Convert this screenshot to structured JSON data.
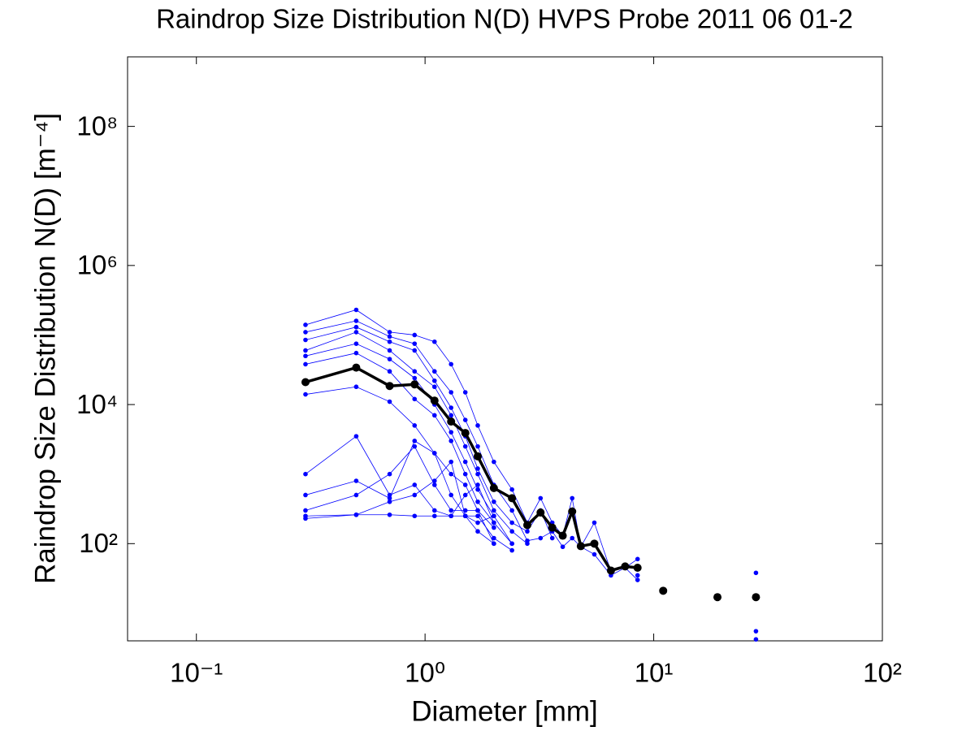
{
  "chart_data": {
    "type": "line",
    "title": "Raindrop Size Distribution N(D) HVPS Probe 2011 06 01-2",
    "x_label": "Diameter [mm]",
    "y_label": "Raindrop Size Distribution N(D) [m⁻⁴]",
    "x": [
      0.3,
      0.5,
      0.7,
      0.9,
      1.1,
      1.3,
      1.5,
      1.7,
      2.0,
      2.4,
      2.8,
      3.2,
      3.6,
      4.0,
      4.4,
      4.8,
      5.5,
      6.5,
      7.5,
      8.5,
      11,
      19,
      28
    ],
    "xscale": "log",
    "yscale": "log",
    "xlim": [
      0.05,
      100
    ],
    "ylim": [
      4,
      1000000000
    ],
    "xticks": [
      {
        "value": 0.1,
        "label": "10⁻¹"
      },
      {
        "value": 1,
        "label": "10⁰"
      },
      {
        "value": 10,
        "label": "10¹"
      },
      {
        "value": 100,
        "label": "10²"
      }
    ],
    "yticks": [
      {
        "value": 100,
        "label": "10²"
      },
      {
        "value": 10000,
        "label": "10⁴"
      },
      {
        "value": 1000000,
        "label": "10⁶"
      },
      {
        "value": 100000000,
        "label": "10⁸"
      }
    ],
    "grid": false,
    "series": [
      {
        "color": "#0000ff",
        "line": true,
        "values": [
          140000,
          230000,
          110000,
          100000,
          80000,
          38000,
          15000,
          5000,
          1500,
          600,
          200,
          450,
          200,
          130,
          450,
          90,
          200,
          40,
          45,
          60,
          null,
          null,
          38
        ]
      },
      {
        "color": "#0000ff",
        "line": true,
        "values": [
          110000,
          160000,
          95000,
          75000,
          30000,
          15000,
          6000,
          2500,
          700,
          300,
          110,
          120,
          150,
          90,
          120,
          90,
          70,
          35,
          45,
          30,
          null,
          null,
          5.5
        ]
      },
      {
        "color": "#0000ff",
        "line": true,
        "values": [
          85000,
          130000,
          80000,
          60000,
          22000,
          9000,
          3500,
          1200,
          400,
          200,
          150,
          300,
          120,
          null,
          null,
          null,
          null,
          null,
          null,
          35,
          null,
          null,
          4.2
        ]
      },
      {
        "color": "#0000ff",
        "line": true,
        "values": [
          60000,
          110000,
          60000,
          30000,
          18000,
          7000,
          2500,
          1000,
          300,
          150,
          100,
          null,
          null,
          null,
          null,
          null,
          null,
          null,
          null,
          null,
          null,
          null,
          null
        ]
      },
      {
        "color": "#0000ff",
        "line": true,
        "values": [
          50000,
          75000,
          45000,
          24000,
          10000,
          4000,
          1500,
          600,
          250,
          null,
          null,
          null,
          null,
          null,
          null,
          null,
          null,
          null,
          null,
          null,
          null,
          null,
          null
        ]
      },
      {
        "color": "#0000ff",
        "line": true,
        "values": [
          38000,
          55000,
          30000,
          12000,
          7000,
          3000,
          1000,
          400,
          200,
          null,
          null,
          null,
          null,
          null,
          null,
          null,
          null,
          null,
          null,
          null,
          null,
          null,
          null
        ]
      },
      {
        "color": "#0000ff",
        "line": true,
        "values": [
          14000,
          18000,
          11000,
          5000,
          2000,
          1000,
          700,
          300,
          170,
          null,
          null,
          null,
          null,
          null,
          null,
          null,
          null,
          null,
          null,
          null,
          null,
          null,
          null
        ]
      },
      {
        "color": "#0000ff",
        "line": true,
        "values": [
          1000,
          3500,
          500,
          700,
          300,
          250,
          250,
          250,
          120,
          80,
          null,
          null,
          null,
          null,
          null,
          null,
          null,
          null,
          null,
          null,
          null,
          null,
          null
        ]
      },
      {
        "color": "#0000ff",
        "line": true,
        "values": [
          500,
          800,
          450,
          3000,
          2000,
          500,
          250,
          200,
          250,
          100,
          null,
          null,
          null,
          null,
          null,
          null,
          null,
          null,
          null,
          null,
          null,
          null,
          null
        ]
      },
      {
        "color": "#0000ff",
        "line": true,
        "values": [
          300,
          500,
          1000,
          2500,
          700,
          300,
          300,
          300,
          100,
          null,
          null,
          null,
          null,
          null,
          null,
          null,
          null,
          null,
          null,
          null,
          null,
          null,
          null
        ]
      },
      {
        "color": "#0000ff",
        "line": true,
        "values": [
          250,
          260,
          260,
          250,
          250,
          250,
          500,
          700,
          200,
          100,
          null,
          null,
          null,
          null,
          null,
          null,
          null,
          null,
          null,
          null,
          null,
          null,
          null
        ]
      },
      {
        "color": "#0000ff",
        "line": true,
        "values": [
          230,
          260,
          400,
          500,
          800,
          1500,
          250,
          150,
          100,
          null,
          null,
          null,
          null,
          null,
          null,
          null,
          null,
          null,
          null,
          null,
          null,
          null,
          null
        ]
      },
      {
        "color": "#000000",
        "line": true,
        "values": [
          21000,
          34000,
          18500,
          19500,
          11400,
          5700,
          3900,
          1800,
          630,
          450,
          185,
          280,
          170,
          130,
          290,
          92,
          100,
          41,
          47,
          45,
          null,
          null,
          null
        ]
      },
      {
        "color": "#000000",
        "line": false,
        "values": [
          null,
          null,
          null,
          null,
          null,
          null,
          null,
          null,
          null,
          null,
          null,
          null,
          null,
          null,
          null,
          null,
          null,
          null,
          null,
          null,
          21,
          17,
          17
        ]
      }
    ]
  }
}
